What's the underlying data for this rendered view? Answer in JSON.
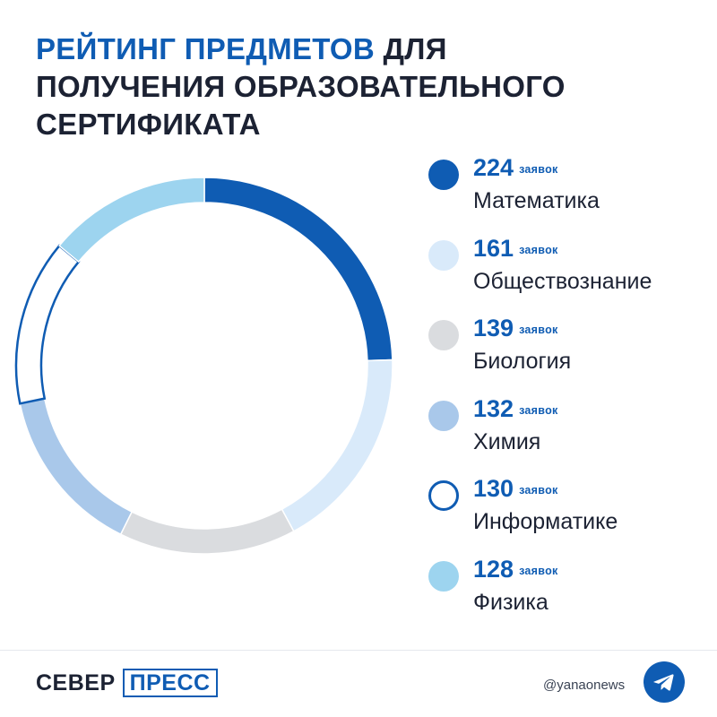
{
  "title": {
    "line1_highlight": "РЕЙТИНГ ПРЕДМЕТОВ",
    "line1_rest": "ДЛЯ",
    "line2": "ПОЛУЧЕНИЯ ОБРАЗОВАТЕЛЬНОГО",
    "line3": "СЕРТИФИКАТА"
  },
  "chart_data": {
    "type": "pie",
    "style": "donut",
    "unit": "заявок",
    "categories": [
      "Математика",
      "Обществознание",
      "Биология",
      "Химия",
      "Информатике",
      "Физика"
    ],
    "values": [
      224,
      161,
      139,
      132,
      130,
      128
    ],
    "colors": [
      "#0f5cb3",
      "#d9eafa",
      "#dadcdf",
      "#a9c8ea",
      "#ffffff",
      "#9dd4ef"
    ],
    "outline_color": "#0f5cb3",
    "legend": [
      {
        "value": "224",
        "unit": "заявок",
        "label": "Математика",
        "color": "#0f5cb3",
        "outlined": false
      },
      {
        "value": "161",
        "unit": "заявок",
        "label": "Обществознание",
        "color": "#d9eafa",
        "outlined": false
      },
      {
        "value": "139",
        "unit": "заявок",
        "label": "Биология",
        "color": "#dadcdf",
        "outlined": false
      },
      {
        "value": "132",
        "unit": "заявок",
        "label": "Химия",
        "color": "#a9c8ea",
        "outlined": false
      },
      {
        "value": "130",
        "unit": "заявок",
        "label": "Информатике",
        "color": "#ffffff",
        "outlined": true
      },
      {
        "value": "128",
        "unit": "заявок",
        "label": "Физика",
        "color": "#9dd4ef",
        "outlined": false
      }
    ]
  },
  "footer": {
    "logo_left": "СЕВЕР",
    "logo_right": "ПРЕСС",
    "handle": "@yanaonews",
    "icon": "telegram-icon"
  }
}
